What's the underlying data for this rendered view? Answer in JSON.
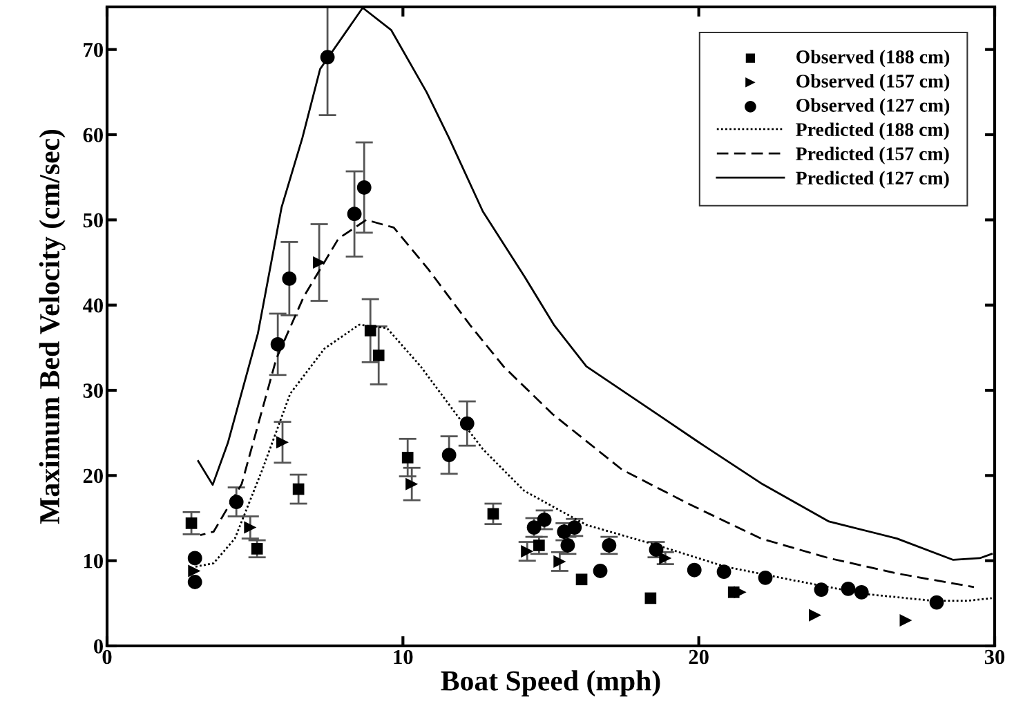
{
  "chart_data": {
    "type": "scatter",
    "xlabel": "Boat Speed (mph)",
    "ylabel": "Maximum Bed Velocity (cm/sec)",
    "xlim": [
      0,
      30
    ],
    "xticks": [
      0,
      10,
      20,
      30
    ],
    "ylim": [
      0,
      75
    ],
    "yticks": [
      0,
      10,
      20,
      30,
      40,
      50,
      60,
      70
    ],
    "legend": "top right",
    "grid": false,
    "series": [
      {
        "name": "Observed (188 cm)",
        "type": "scatter",
        "marker": "square",
        "color": "#000000",
        "x": [
          2.85,
          5.07,
          6.47,
          8.9,
          9.18,
          10.16,
          13.05,
          14.6,
          16.04,
          18.37,
          21.18
        ],
        "values": [
          14.4,
          11.4,
          18.4,
          37.0,
          34.1,
          22.1,
          15.5,
          11.8,
          7.8,
          5.6,
          6.3
        ],
        "errors": [
          1.3,
          1.0,
          1.7,
          3.7,
          3.4,
          2.2,
          1.2,
          1.0,
          null,
          null,
          null
        ]
      },
      {
        "name": "Observed (157 cm)",
        "type": "scatter",
        "marker": "triangle",
        "color": "#000000",
        "x": [
          2.95,
          4.84,
          5.93,
          7.17,
          10.3,
          14.2,
          15.3,
          18.87,
          21.4,
          23.93,
          27.0
        ],
        "values": [
          8.8,
          13.9,
          23.9,
          45.0,
          19.0,
          11.1,
          9.9,
          10.3,
          6.3,
          3.6,
          3.0
        ],
        "errors": [
          null,
          1.3,
          2.4,
          4.5,
          1.9,
          1.1,
          1.1,
          0.7,
          null,
          null,
          null
        ]
      },
      {
        "name": "Observed (127 cm)",
        "type": "scatter",
        "marker": "circle",
        "color": "#000000",
        "x": [
          2.97,
          2.97,
          4.37,
          5.77,
          6.16,
          7.45,
          8.36,
          8.69,
          11.56,
          12.17,
          14.43,
          14.78,
          15.45,
          15.8,
          15.57,
          16.67,
          16.97,
          18.56,
          19.85,
          20.85,
          22.25,
          24.14,
          25.05,
          25.5,
          28.04
        ],
        "values": [
          10.3,
          7.5,
          16.9,
          35.4,
          43.1,
          69.1,
          50.7,
          53.8,
          22.4,
          26.1,
          13.9,
          14.8,
          13.4,
          13.9,
          11.8,
          8.8,
          11.8,
          11.3,
          8.9,
          8.7,
          8.0,
          6.6,
          6.7,
          6.3,
          5.1
        ],
        "errors": [
          null,
          null,
          1.7,
          3.6,
          4.3,
          [
            62.3,
            75
          ],
          5.0,
          5.3,
          2.2,
          2.6,
          1.1,
          1.1,
          1.0,
          1.0,
          1.0,
          null,
          1.0,
          0.9,
          null,
          null,
          null,
          null,
          null,
          null,
          null
        ]
      },
      {
        "name": "Predicted (188 cm)",
        "type": "line",
        "line_style": "dotted",
        "color": "#000000",
        "x": [
          2.99,
          3.6,
          4.32,
          5.25,
          6.19,
          7.35,
          8.52,
          9.46,
          10.6,
          11.8,
          12.7,
          14.1,
          16.2,
          18.6,
          20.9,
          23.2,
          25.6,
          27.9,
          29.1,
          29.9
        ],
        "values": [
          9.3,
          9.7,
          12.6,
          20.7,
          29.6,
          34.9,
          37.7,
          37.3,
          32.8,
          27.2,
          23.1,
          18.2,
          14.2,
          11.8,
          9.3,
          7.7,
          6.1,
          5.3,
          5.3,
          5.6
        ]
      },
      {
        "name": "Predicted (157 cm)",
        "type": "line",
        "line_style": "dashed",
        "color": "#000000",
        "x": [
          3.15,
          3.6,
          4.55,
          5.72,
          6.65,
          7.82,
          8.76,
          9.69,
          10.86,
          12.26,
          13.4,
          15.06,
          17.4,
          19.7,
          22.1,
          24.4,
          26.7,
          29.3
        ],
        "values": [
          13.0,
          13.4,
          19.0,
          33.7,
          41.0,
          47.8,
          50.0,
          49.1,
          44.2,
          37.7,
          32.8,
          27.2,
          20.7,
          16.6,
          12.6,
          10.3,
          8.5,
          6.9
        ]
      },
      {
        "name": "Predicted (127 cm)",
        "type": "line",
        "line_style": "solid",
        "color": "#000000",
        "x": [
          3.08,
          3.57,
          4.09,
          5.1,
          5.9,
          6.6,
          7.2,
          8.64,
          9.6,
          10.8,
          11.56,
          12.7,
          14.1,
          15.1,
          16.2,
          18.6,
          20.0,
          22.1,
          24.4,
          26.7,
          28.6,
          29.5,
          29.9
        ],
        "values": [
          21.7,
          18.9,
          23.9,
          36.7,
          51.5,
          59.6,
          67.7,
          74.9,
          72.3,
          65.0,
          59.6,
          51.0,
          43.4,
          37.7,
          32.8,
          27.2,
          23.9,
          19.1,
          14.6,
          12.6,
          10.1,
          10.3,
          10.8
        ]
      }
    ]
  }
}
